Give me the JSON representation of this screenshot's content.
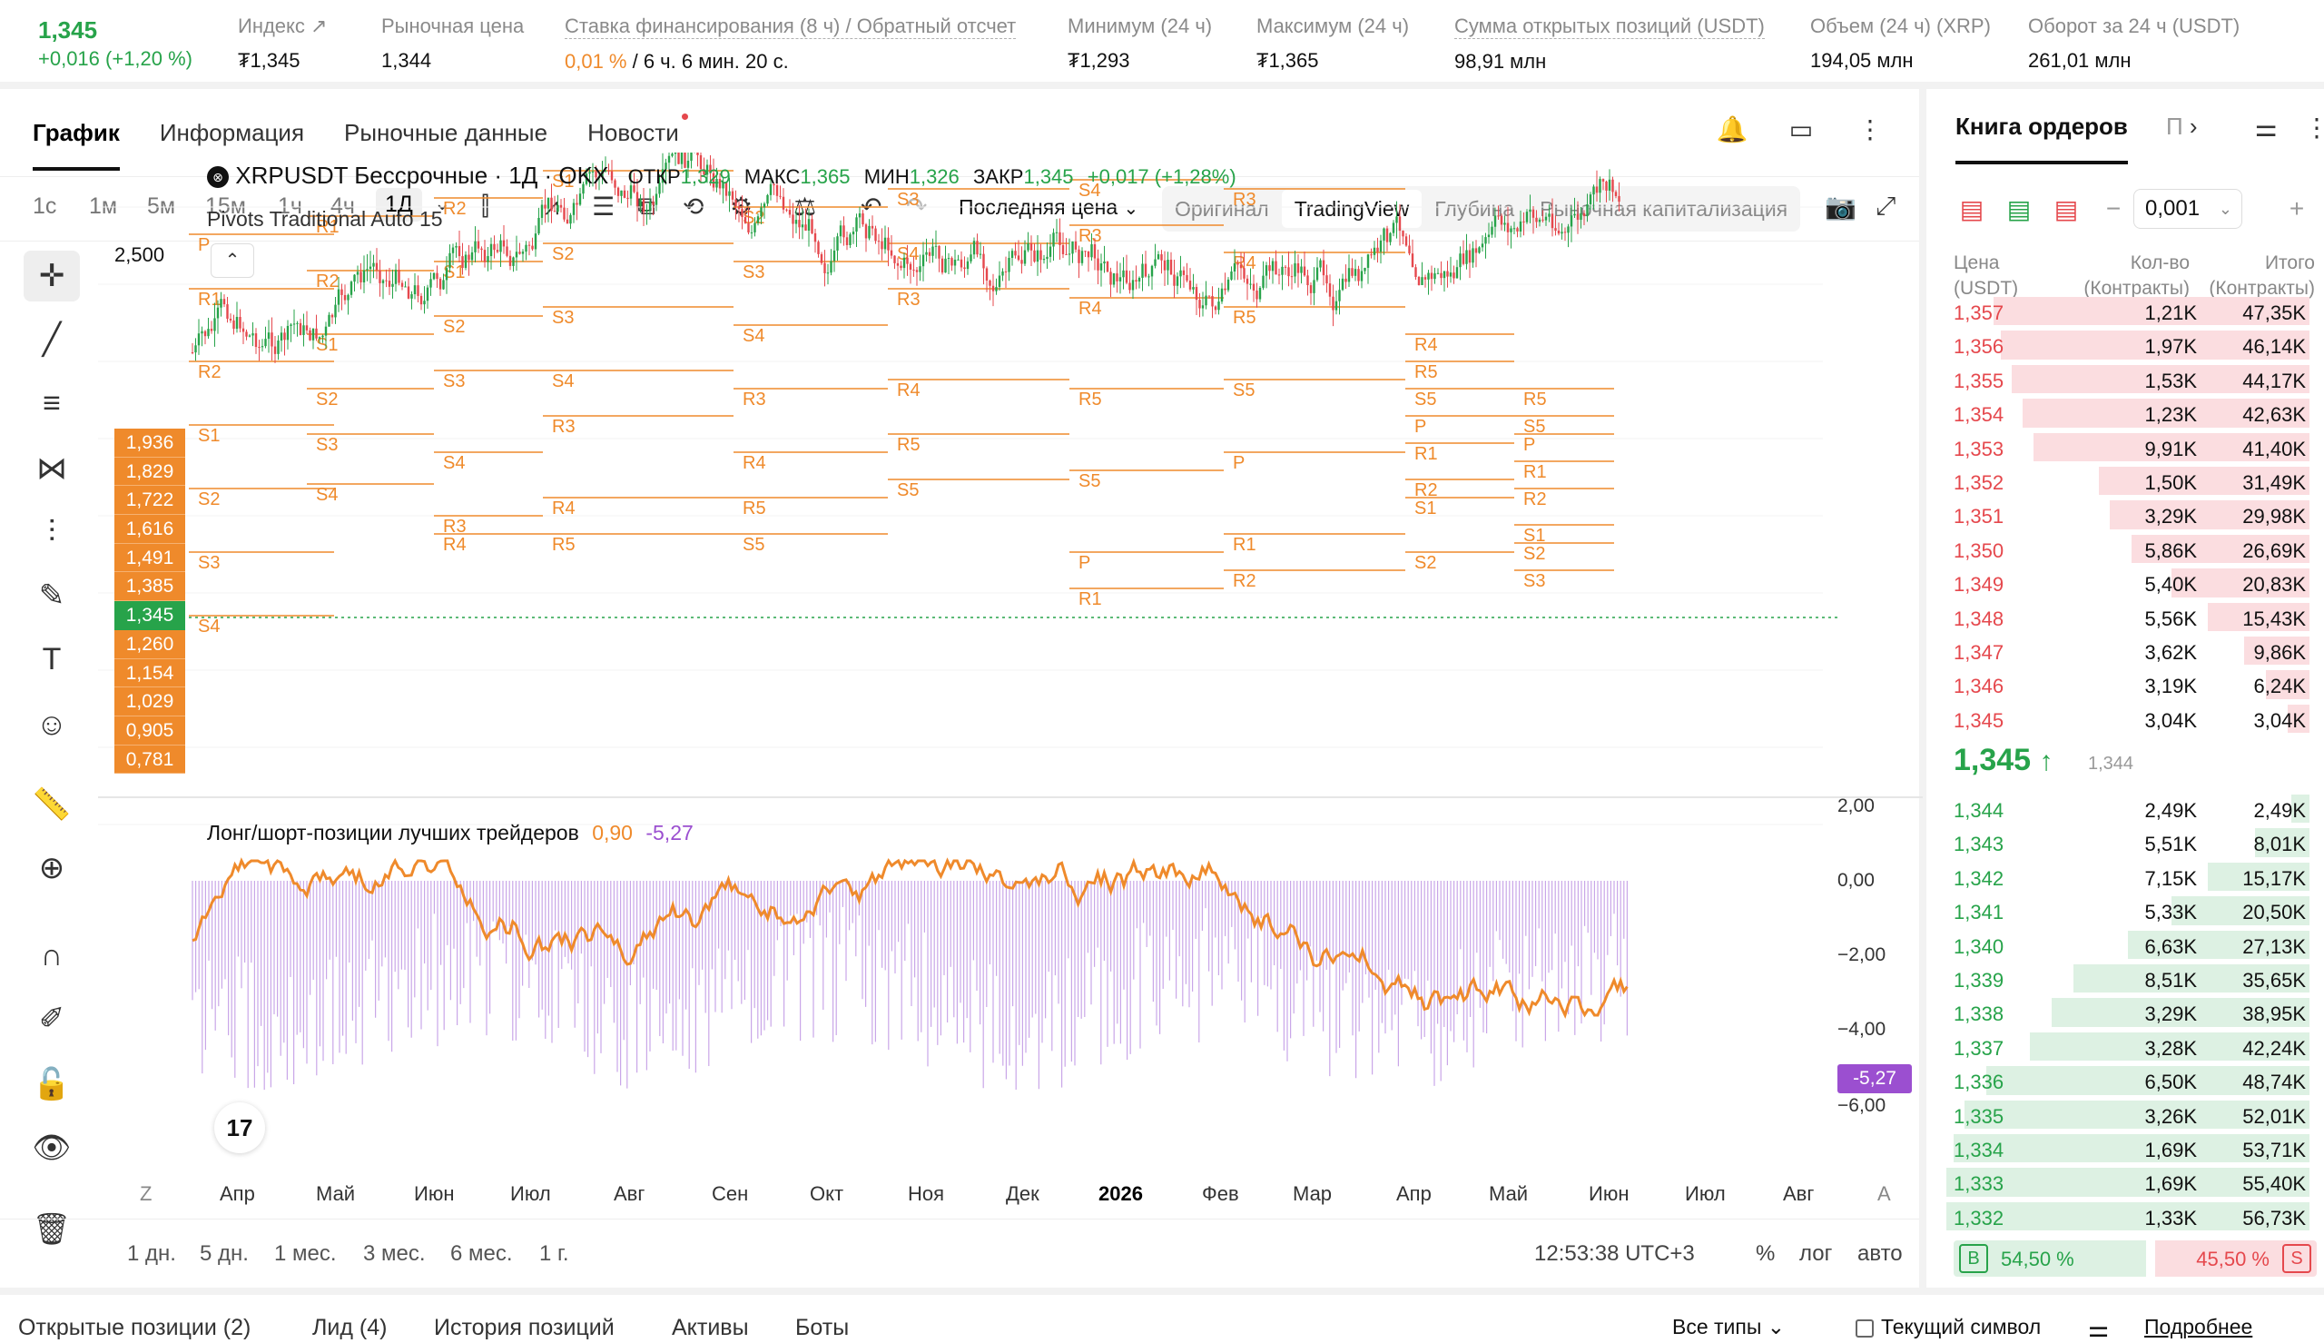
{
  "ticker": {
    "price": "1,345",
    "change": "+0,016 (+1,20 %)",
    "items": [
      {
        "label": "Индекс",
        "value": "₮1,345",
        "link": true
      },
      {
        "label": "Рыночная цена",
        "value": "1,344"
      },
      {
        "label": "Ставка финансирования (8 ч) / Обратный отсчет",
        "value_accent": "0,01 %",
        "value": " / 6 ч. 6 мин. 20 с."
      },
      {
        "label": "Минимум (24 ч)",
        "value": "₮1,293"
      },
      {
        "label": "Максимум (24 ч)",
        "value": "₮1,365"
      },
      {
        "label": "Сумма открытых позиций (USDT)",
        "value": "98,91 млн"
      },
      {
        "label": "Объем (24 ч) (XRP)",
        "value": "194,05 млн"
      },
      {
        "label": "Оборот за 24 ч (USDT)",
        "value": "261,01 млн"
      }
    ]
  },
  "tabs": [
    "График",
    "Информация",
    "Рыночные данные",
    "Новости"
  ],
  "timeframes": [
    "1с",
    "1м",
    "5м",
    "15м",
    "1ч",
    "4ч",
    "1Д"
  ],
  "toolbar": {
    "last_price": "Последняя цена"
  },
  "views": [
    "Оригинал",
    "TradingView",
    "Глубина",
    "Рыночная капитализация"
  ],
  "chart": {
    "legend_symbol": "XRPUSDT Бессрочные · 1Д · OKX",
    "ohlc": [
      {
        "k": "ОТКР",
        "v": "1,329"
      },
      {
        "k": "МАКС",
        "v": "1,365"
      },
      {
        "k": "МИН",
        "v": "1,326"
      },
      {
        "k": "ЗАКР",
        "v": "1,345"
      }
    ],
    "change": "+0,017 (+1,28%)",
    "pivots": "Pivots Traditional Auto 15",
    "ylabel_top": "2,500",
    "price_ladder": [
      "1,936",
      "1,829",
      "1,722",
      "1,616",
      "1,491",
      "1,385",
      "1,345",
      "1,260",
      "1,154",
      "1,029",
      "0,905",
      "0,781"
    ],
    "current_price": "1,345"
  },
  "longshort": {
    "title": "Лонг/шорт-позиции лучших трейдеров",
    "v1": "0,90",
    "v2": "-5,27",
    "axis": [
      "2,00",
      "0,00",
      "−2,00",
      "−4,00",
      "−6,00"
    ],
    "tag": "-5,27"
  },
  "x_axis": [
    "Z",
    "Апр",
    "Май",
    "Июн",
    "Июл",
    "Авг",
    "Сен",
    "Окт",
    "Ноя",
    "Дек",
    "2026",
    "Фев",
    "Мар",
    "Апр",
    "Май",
    "Июн",
    "Июл",
    "Авг",
    "A"
  ],
  "ranges": [
    "1 дн.",
    "5 дн.",
    "1 мес.",
    "3 мес.",
    "6 мес.",
    "1 г."
  ],
  "time_readout": "12:53:38 UTC+3",
  "scale_opts": [
    "%",
    "лог",
    "авто"
  ],
  "orderbook": {
    "title": "Книга ордеров",
    "title2": "П",
    "tick": "0,001",
    "cols": {
      "price": "Цена (USDT)",
      "qty": "Кол-во (Контракты)",
      "total": "Итого (Контракты)"
    },
    "asks": [
      {
        "p": "1,357",
        "q": "1,21K",
        "t": "47,35K",
        "d": 0.87
      },
      {
        "p": "1,356",
        "q": "1,97K",
        "t": "46,14K",
        "d": 0.85
      },
      {
        "p": "1,355",
        "q": "1,53K",
        "t": "44,17K",
        "d": 0.82
      },
      {
        "p": "1,354",
        "q": "1,23K",
        "t": "42,63K",
        "d": 0.79
      },
      {
        "p": "1,353",
        "q": "9,91K",
        "t": "41,40K",
        "d": 0.76
      },
      {
        "p": "1,352",
        "q": "1,50K",
        "t": "31,49K",
        "d": 0.58
      },
      {
        "p": "1,351",
        "q": "3,29K",
        "t": "29,98K",
        "d": 0.55
      },
      {
        "p": "1,350",
        "q": "5,86K",
        "t": "26,69K",
        "d": 0.49
      },
      {
        "p": "1,349",
        "q": "5,40K",
        "t": "20,83K",
        "d": 0.38
      },
      {
        "p": "1,348",
        "q": "5,56K",
        "t": "15,43K",
        "d": 0.28
      },
      {
        "p": "1,347",
        "q": "3,62K",
        "t": "9,86K",
        "d": 0.18
      },
      {
        "p": "1,346",
        "q": "3,19K",
        "t": "6,24K",
        "d": 0.12
      },
      {
        "p": "1,345",
        "q": "3,04K",
        "t": "3,04K",
        "d": 0.06
      }
    ],
    "mid": "1,345",
    "mid_sub": "1,344",
    "bids": [
      {
        "p": "1,344",
        "q": "2,49K",
        "t": "2,49K",
        "d": 0.05
      },
      {
        "p": "1,343",
        "q": "5,51K",
        "t": "8,01K",
        "d": 0.15
      },
      {
        "p": "1,342",
        "q": "7,15K",
        "t": "15,17K",
        "d": 0.28
      },
      {
        "p": "1,341",
        "q": "5,33K",
        "t": "20,50K",
        "d": 0.38
      },
      {
        "p": "1,340",
        "q": "6,63K",
        "t": "27,13K",
        "d": 0.5
      },
      {
        "p": "1,339",
        "q": "8,51K",
        "t": "35,65K",
        "d": 0.65
      },
      {
        "p": "1,338",
        "q": "3,29K",
        "t": "38,95K",
        "d": 0.71
      },
      {
        "p": "1,337",
        "q": "3,28K",
        "t": "42,24K",
        "d": 0.77
      },
      {
        "p": "1,336",
        "q": "6,50K",
        "t": "48,74K",
        "d": 0.89
      },
      {
        "p": "1,335",
        "q": "3,26K",
        "t": "52,01K",
        "d": 0.95
      },
      {
        "p": "1,334",
        "q": "1,69K",
        "t": "53,71K",
        "d": 0.98
      },
      {
        "p": "1,333",
        "q": "1,69K",
        "t": "55,40K",
        "d": 1.0
      },
      {
        "p": "1,332",
        "q": "1,33K",
        "t": "56,73K",
        "d": 1.0
      }
    ],
    "ratio_b": "54,50 %",
    "ratio_s": "45,50 %",
    "b_label": "B",
    "s_label": "S"
  },
  "footer": {
    "tabs": [
      "Открытые позиции (2)",
      "Лид (4)",
      "История позиций",
      "Активы",
      "Боты"
    ],
    "all_types": "Все типы",
    "current_symbol": "Текущий символ",
    "more": "Подробнее"
  }
}
